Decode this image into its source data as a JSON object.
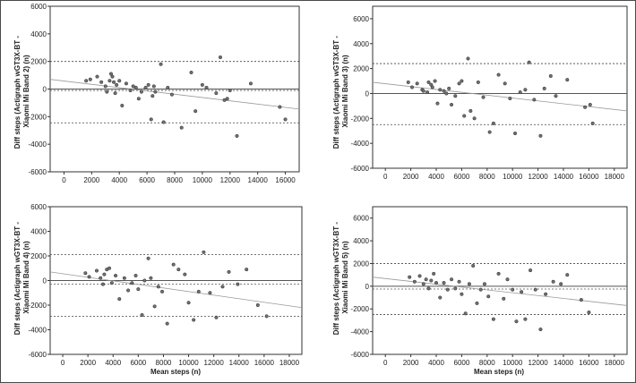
{
  "colors": {
    "frame": "#4a4a4a",
    "plot_border": "#333333",
    "point_fill": "#6f6f6f",
    "point_stroke": "#2f2f2f",
    "mean_line": "#555555",
    "loa_line": "#444444",
    "regression_line": "#9a9a9a"
  },
  "chart_data": [
    {
      "type": "scatter",
      "ylabel": "Diff steps (Actigraph wGT3X-BT - Xiaomi Mi Band 2) (n)",
      "xlabel": "",
      "xlim": [
        -1000,
        17000
      ],
      "ylim": [
        -6000,
        6000
      ],
      "xticks": [
        0,
        2000,
        4000,
        6000,
        8000,
        10000,
        12000,
        14000,
        16000
      ],
      "yticks": [
        -6000,
        -4000,
        -2000,
        0,
        2000,
        4000,
        6000
      ],
      "mean_diff": -100,
      "upper_loa": 2000,
      "lower_loa": -2450,
      "regression": [
        [
          -1000,
          700
        ],
        [
          17000,
          -1450
        ]
      ],
      "x": [
        1600,
        1900,
        2400,
        2700,
        3000,
        3100,
        3300,
        3400,
        3500,
        3600,
        3700,
        3800,
        4000,
        4200,
        4500,
        4800,
        5000,
        5200,
        5400,
        5600,
        5900,
        6100,
        6300,
        6400,
        6500,
        6600,
        7000,
        7200,
        7500,
        7800,
        8500,
        9200,
        9500,
        10000,
        10300,
        11000,
        11300,
        11600,
        11800,
        12000,
        12500,
        13500,
        15600,
        16000
      ],
      "y": [
        600,
        700,
        900,
        500,
        200,
        -200,
        600,
        1100,
        900,
        500,
        -300,
        300,
        600,
        -1200,
        400,
        -100,
        200,
        100,
        -700,
        -200,
        100,
        300,
        -2200,
        -500,
        200,
        -200,
        1800,
        -2400,
        100,
        -400,
        -2800,
        1200,
        -1600,
        300,
        100,
        -300,
        2300,
        -800,
        -700,
        -100,
        -3400,
        400,
        -1300,
        -2200
      ]
    },
    {
      "type": "scatter",
      "ylabel": "Diff steps (Actigraph wGT3X-BT - Xiaomi Mi Band 3) (n)",
      "xlabel": "",
      "xlim": [
        -1000,
        19000
      ],
      "ylim": [
        -6000,
        7000
      ],
      "xticks": [
        0,
        2000,
        4000,
        6000,
        8000,
        10000,
        12000,
        14000,
        16000,
        18000
      ],
      "yticks": [
        -6000,
        -4000,
        -2000,
        0,
        2000,
        4000,
        6000
      ],
      "mean_diff": 0,
      "upper_loa": 2400,
      "lower_loa": -2500,
      "regression": [
        [
          -1000,
          900
        ],
        [
          19000,
          -1400
        ]
      ],
      "x": [
        1800,
        2100,
        2500,
        2900,
        3000,
        3300,
        3400,
        3600,
        3700,
        3900,
        4100,
        4300,
        4600,
        4800,
        5000,
        5200,
        5500,
        5800,
        6000,
        6200,
        6500,
        6700,
        7000,
        7300,
        7700,
        8200,
        8500,
        8900,
        9400,
        9800,
        10200,
        10600,
        11000,
        11300,
        11700,
        12200,
        12500,
        13000,
        13400,
        14300,
        15700,
        16100,
        16300
      ],
      "y": [
        900,
        500,
        800,
        300,
        200,
        100,
        900,
        700,
        500,
        1000,
        -800,
        300,
        200,
        0,
        400,
        -900,
        -200,
        800,
        1000,
        -1800,
        2800,
        -1400,
        -2000,
        900,
        -300,
        -3100,
        -2400,
        1500,
        800,
        -400,
        -3200,
        100,
        300,
        2500,
        -500,
        -3400,
        400,
        1400,
        -200,
        1100,
        -1100,
        -900,
        -2400
      ]
    },
    {
      "type": "scatter",
      "ylabel": "Diff steps (Actigraph wGT3X-BT - Xiaomi Mi Band 4) (n)",
      "xlabel": "Mean steps (n)",
      "xlim": [
        -1000,
        19000
      ],
      "ylim": [
        -6000,
        6000
      ],
      "xticks": [
        0,
        2000,
        4000,
        6000,
        8000,
        10000,
        12000,
        14000,
        16000,
        18000
      ],
      "yticks": [
        -6000,
        -4000,
        -2000,
        0,
        2000,
        4000,
        6000
      ],
      "mean_diff": -300,
      "upper_loa": 2100,
      "lower_loa": -2900,
      "regression": [
        [
          -1000,
          700
        ],
        [
          19000,
          -2200
        ]
      ],
      "x": [
        1800,
        2100,
        2700,
        3000,
        3200,
        3300,
        3500,
        3700,
        3900,
        4200,
        4500,
        4900,
        5200,
        5500,
        5800,
        6000,
        6300,
        6500,
        6800,
        7000,
        7300,
        7600,
        7900,
        8300,
        8800,
        9200,
        9700,
        10000,
        10400,
        10800,
        11200,
        11700,
        12200,
        12700,
        13200,
        13900,
        14600,
        15500,
        16200
      ],
      "y": [
        600,
        300,
        800,
        200,
        -300,
        500,
        900,
        1000,
        -200,
        400,
        -1500,
        200,
        -800,
        -200,
        400,
        -700,
        -2800,
        0,
        1800,
        200,
        -2100,
        -500,
        -900,
        -3500,
        1300,
        900,
        500,
        -1800,
        -3200,
        -900,
        2300,
        -1000,
        -3000,
        -500,
        700,
        -300,
        900,
        -2000,
        -2900
      ]
    },
    {
      "type": "scatter",
      "ylabel": "Diff steps (Actigraph wGT3X-BT - Xiaomi Mi Band 5) (n)",
      "xlabel": "Mean steps (n)",
      "xlim": [
        -1000,
        19000
      ],
      "ylim": [
        -6000,
        7000
      ],
      "xticks": [
        0,
        2000,
        4000,
        6000,
        8000,
        10000,
        12000,
        14000,
        16000,
        18000
      ],
      "yticks": [
        -6000,
        -4000,
        -2000,
        0,
        2000,
        4000,
        6000
      ],
      "mean_diff": -250,
      "upper_loa": 2000,
      "lower_loa": -2500,
      "regression": [
        [
          -1000,
          800
        ],
        [
          19000,
          -1700
        ]
      ],
      "x": [
        1900,
        2300,
        2700,
        3000,
        3200,
        3400,
        3600,
        3800,
        4000,
        4300,
        4600,
        4900,
        5200,
        5500,
        5800,
        6000,
        6300,
        6600,
        6900,
        7200,
        7500,
        7800,
        8100,
        8500,
        8900,
        9300,
        9600,
        10000,
        10300,
        10700,
        11000,
        11400,
        11800,
        12200,
        12600,
        13200,
        13800,
        14300,
        15400,
        16000
      ],
      "y": [
        800,
        400,
        900,
        200,
        600,
        -200,
        500,
        1100,
        300,
        -1000,
        300,
        -300,
        600,
        -200,
        400,
        -700,
        -2400,
        200,
        1800,
        -1500,
        -300,
        200,
        -900,
        -2900,
        1100,
        -1100,
        600,
        -300,
        -3100,
        -500,
        -2900,
        1400,
        -300,
        -3800,
        -700,
        400,
        200,
        1000,
        -1200,
        -2300
      ]
    }
  ]
}
